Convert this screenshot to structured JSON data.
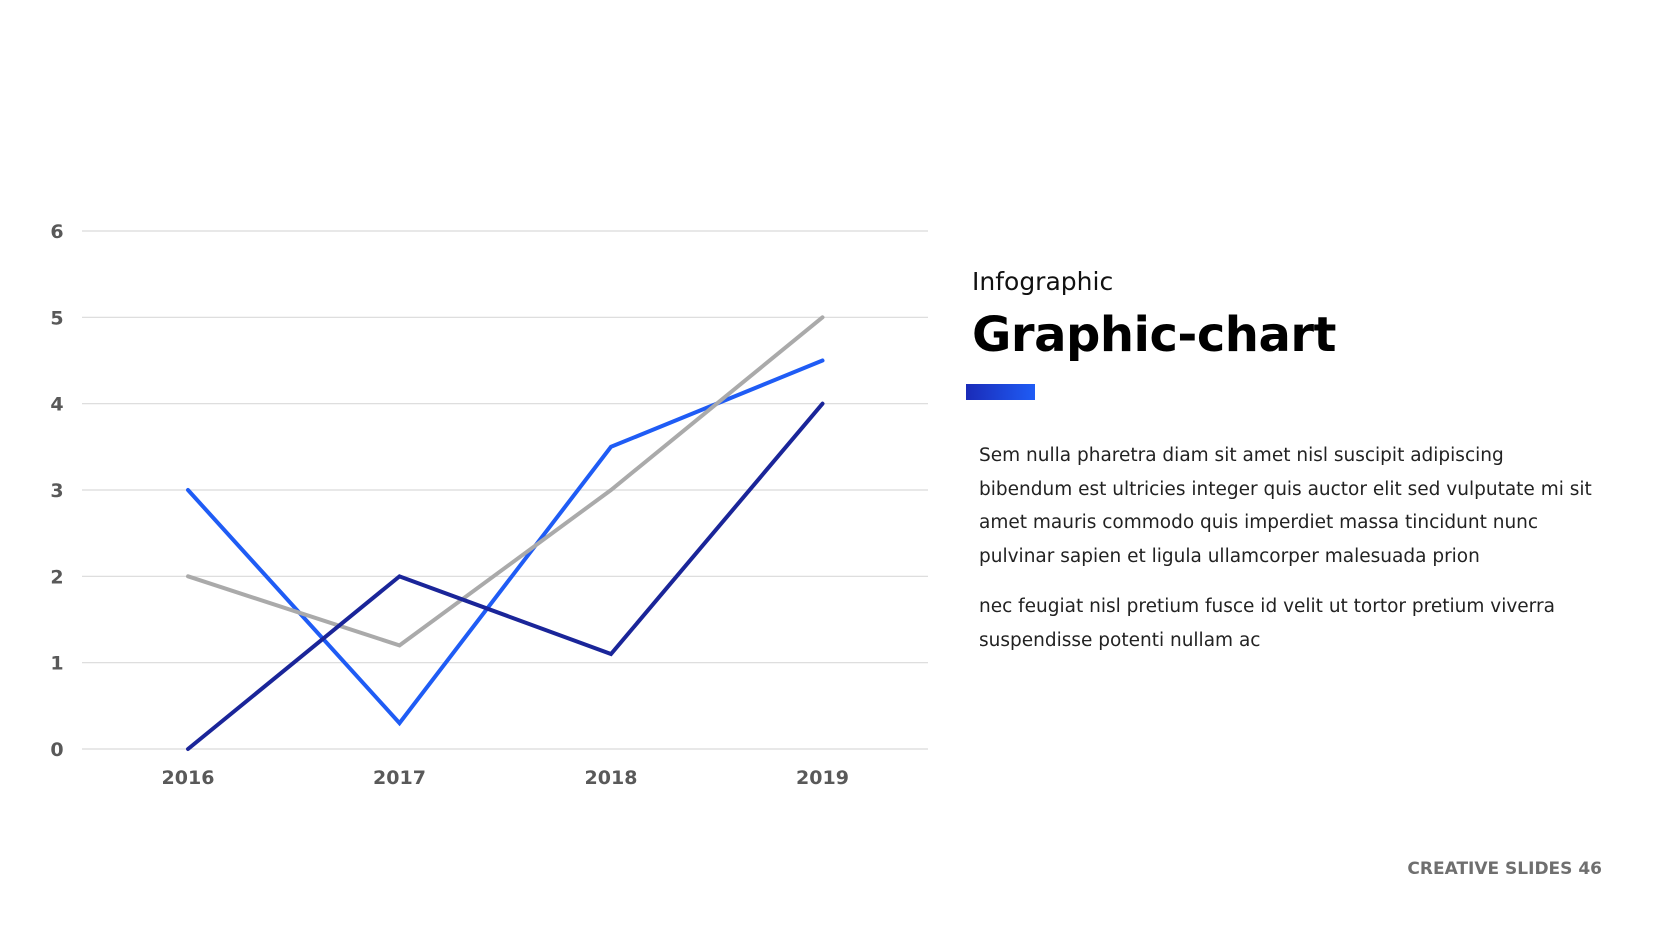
{
  "chart_data": {
    "type": "line",
    "categories": [
      "2016",
      "2017",
      "2018",
      "2019"
    ],
    "ylim": [
      0,
      6
    ],
    "yticks": [
      "0",
      "1",
      "2",
      "3",
      "4",
      "5",
      "6"
    ],
    "grid": true,
    "series": [
      {
        "color": "#1f5cf5",
        "values": [
          3,
          0.3,
          3.5,
          4.5
        ]
      },
      {
        "color": "#aaaaaa",
        "values": [
          2,
          1.2,
          3,
          5
        ]
      },
      {
        "color": "#1a2599",
        "values": [
          0,
          2,
          1.1,
          4
        ]
      }
    ],
    "gridColor": "#d9d9d9"
  },
  "side": {
    "kicker": "Infographic",
    "title": "Graphic-chart",
    "accent_color": "#1f5cf5",
    "paragraph1": "Sem nulla pharetra diam sit amet nisl suscipit adipiscing bibendum est ultricies integer quis auctor elit sed vulputate mi sit amet mauris commodo quis imperdiet massa tincidunt nunc pulvinar sapien et ligula ullamcorper malesuada prion",
    "paragraph2": "nec feugiat nisl pretium fusce id velit ut tortor pretium viverra suspendisse potenti nullam ac"
  },
  "footer": {
    "text": "CREATIVE SLIDES 46"
  }
}
